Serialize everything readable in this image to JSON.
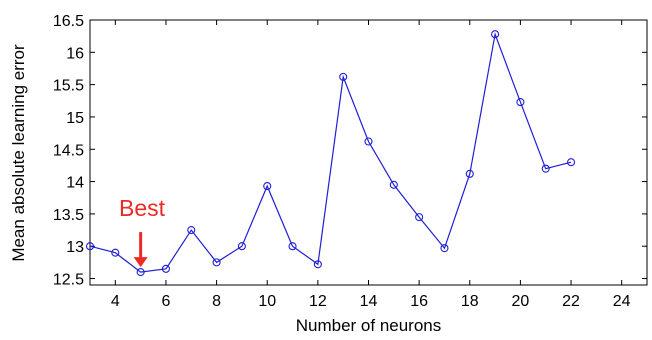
{
  "chart_data": {
    "type": "line",
    "title": "",
    "xlabel": "Number of neurons",
    "ylabel": "Mean absolute learning error",
    "xlim": [
      3,
      25
    ],
    "ylim": [
      12.4,
      16.5
    ],
    "xticks": [
      4,
      6,
      8,
      10,
      12,
      14,
      16,
      18,
      20,
      22,
      24
    ],
    "yticks": [
      12.5,
      13,
      13.5,
      14,
      14.5,
      15,
      15.5,
      16,
      16.5
    ],
    "grid": false,
    "legend": "none",
    "series": [
      {
        "color": "#1f1fd6",
        "marker": "circle",
        "x": [
          3,
          4,
          5,
          6,
          7,
          8,
          9,
          10,
          11,
          12,
          13,
          14,
          15,
          16,
          17,
          18,
          19,
          20,
          21,
          22
        ],
        "y": [
          13.0,
          12.9,
          12.6,
          12.65,
          13.25,
          12.75,
          13.0,
          13.93,
          13.0,
          12.72,
          15.62,
          14.62,
          13.95,
          13.45,
          12.97,
          14.12,
          16.28,
          15.23,
          14.2,
          14.3
        ]
      }
    ],
    "annotations": [
      {
        "text": "Best",
        "x": 5,
        "y": 12.6,
        "color": "#ee2a24"
      }
    ]
  }
}
